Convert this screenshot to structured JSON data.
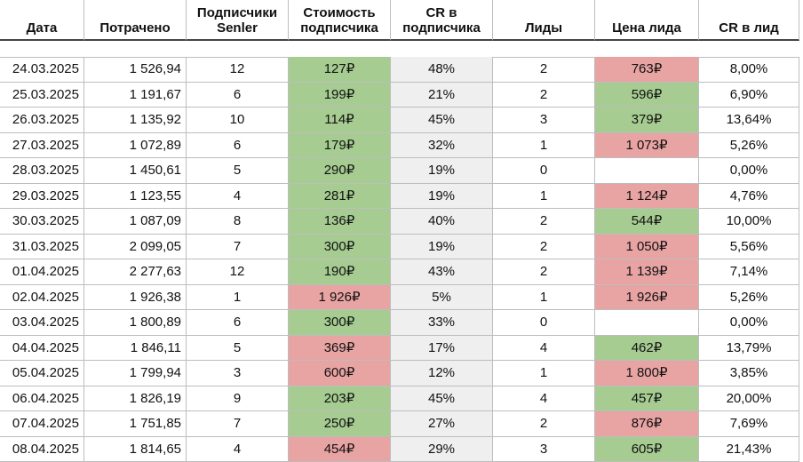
{
  "table": {
    "columns": [
      "Дата",
      "Потрачено",
      "Подписчики Senler",
      "Стоимость подписчика",
      "CR в подписчика",
      "Лиды",
      "Цена лида",
      "CR в лид"
    ],
    "rows": [
      [
        "24.03.2025",
        "1 526,94",
        "12",
        "127₽",
        "48%",
        "2",
        "763₽",
        "8,00%"
      ],
      [
        "25.03.2025",
        "1 191,67",
        "6",
        "199₽",
        "21%",
        "2",
        "596₽",
        "6,90%"
      ],
      [
        "26.03.2025",
        "1 135,92",
        "10",
        "114₽",
        "45%",
        "3",
        "379₽",
        "13,64%"
      ],
      [
        "27.03.2025",
        "1 072,89",
        "6",
        "179₽",
        "32%",
        "1",
        "1 073₽",
        "5,26%"
      ],
      [
        "28.03.2025",
        "1 450,61",
        "5",
        "290₽",
        "19%",
        "0",
        null,
        "0,00%"
      ],
      [
        "29.03.2025",
        "1 123,55",
        "4",
        "281₽",
        "19%",
        "1",
        "1 124₽",
        "4,76%"
      ],
      [
        "30.03.2025",
        "1 087,09",
        "8",
        "136₽",
        "40%",
        "2",
        "544₽",
        "10,00%"
      ],
      [
        "31.03.2025",
        "2 099,05",
        "7",
        "300₽",
        "19%",
        "2",
        "1 050₽",
        "5,56%"
      ],
      [
        "01.04.2025",
        "2 277,63",
        "12",
        "190₽",
        "43%",
        "2",
        "1 139₽",
        "7,14%"
      ],
      [
        "02.04.2025",
        "1 926,38",
        "1",
        "1 926₽",
        "5%",
        "1",
        "1 926₽",
        "5,26%"
      ],
      [
        "03.04.2025",
        "1 800,89",
        "6",
        "300₽",
        "33%",
        "0",
        null,
        "0,00%"
      ],
      [
        "04.04.2025",
        "1 846,11",
        "5",
        "369₽",
        "17%",
        "4",
        "462₽",
        "13,79%"
      ],
      [
        "05.04.2025",
        "1 799,94",
        "3",
        "600₽",
        "12%",
        "1",
        "1 800₽",
        "3,85%"
      ],
      [
        "06.04.2025",
        "1 826,19",
        "9",
        "203₽",
        "45%",
        "4",
        "457₽",
        "20,00%"
      ],
      [
        "07.04.2025",
        "1 751,85",
        "7",
        "250₽",
        "27%",
        "2",
        "876₽",
        "7,69%"
      ],
      [
        "08.04.2025",
        "1 814,65",
        "4",
        "454₽",
        "29%",
        "3",
        "605₽",
        "21,43%"
      ]
    ],
    "cost_colors": [
      "#a6cc92",
      "#a6cc92",
      "#a6cc92",
      "#a6cc92",
      "#a6cc92",
      "#a6cc92",
      "#a6cc92",
      "#a6cc92",
      "#a6cc92",
      "#e8a3a3",
      "#a6cc92",
      "#e8a3a3",
      "#e8a3a3",
      "#a6cc92",
      "#a6cc92",
      "#e8a3a3"
    ],
    "lead_price_colors": [
      "#e8a3a3",
      "#a6cc92",
      "#a6cc92",
      "#e8a3a3",
      "#ffffff",
      "#e8a3a3",
      "#a6cc92",
      "#e8a3a3",
      "#e8a3a3",
      "#e8a3a3",
      "#ffffff",
      "#a6cc92",
      "#e8a3a3",
      "#a6cc92",
      "#e8a3a3",
      "#a6cc92"
    ]
  }
}
